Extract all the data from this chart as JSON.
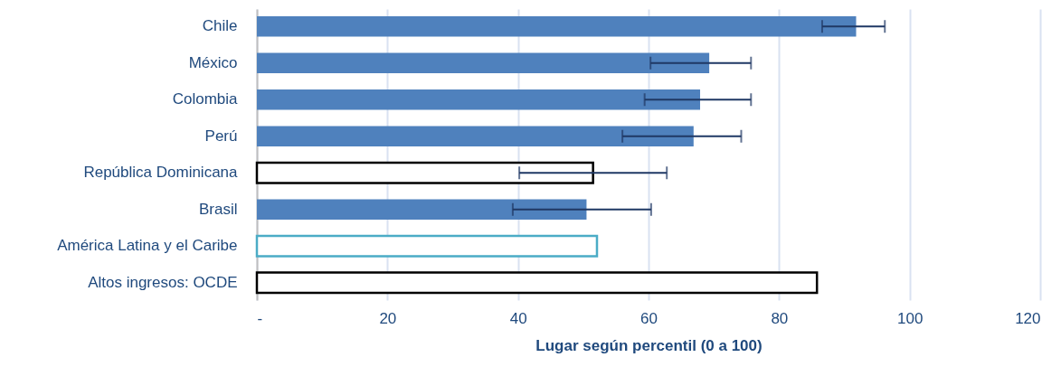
{
  "chart_data": {
    "type": "bar",
    "orientation": "horizontal",
    "xlabel": "Lugar según percentil (0 a 100)",
    "categories": [
      "Chile",
      "México",
      "Colombia",
      "Perú",
      "República Dominicana",
      "Brasil",
      "América Latina y el Caribe",
      "Altos ingresos: OCDE"
    ],
    "values": [
      91.8,
      69.3,
      67.9,
      66.9,
      51.5,
      50.5,
      52.1,
      85.8
    ],
    "errors": [
      [
        86.6,
        96.2
      ],
      [
        60.3,
        75.7
      ],
      [
        59.4,
        75.7
      ],
      [
        56.0,
        74.2
      ],
      [
        40.2,
        62.8
      ],
      [
        39.2,
        60.4
      ],
      null,
      null
    ],
    "colors": [
      "#4f81bd",
      "#4f81bd",
      "#4f81bd",
      "#4f81bd",
      "#000000",
      "#4f81bd",
      "#4bacc6",
      "#000000"
    ],
    "xlim": [
      0,
      120
    ],
    "xticks": [
      {
        "value": 0,
        "label": "-"
      },
      20,
      40,
      60,
      80,
      100,
      120
    ],
    "grid": "x"
  }
}
